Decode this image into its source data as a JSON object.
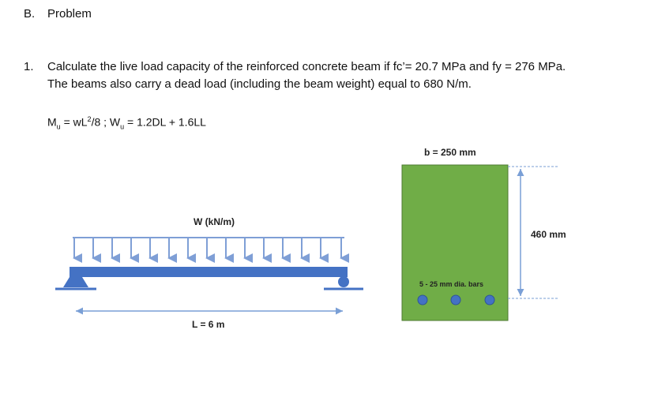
{
  "section": {
    "label": "B.",
    "title": "Problem"
  },
  "problem": {
    "number": "1.",
    "line1": "Calculate the live load capacity of the reinforced concrete beam if fc’= 20.7 MPa and fy = 276 MPa.",
    "line2": "The beams also carry a dead load (including the beam weight) equal to 680 N/m."
  },
  "formula": {
    "mu_lhs": "M",
    "mu_sub": "u",
    "mu_rhs_a": " = wL",
    "mu_sup": "2",
    "mu_rhs_b": "/8 ; W",
    "wu_sub": "u",
    "wu_rhs": " = 1.2DL + 1.6LL"
  },
  "beam_diagram": {
    "load_label": "W (kN/m)",
    "span_label": "L = 6 m",
    "colors": {
      "beam": "#4472c4",
      "load_arrows": "#7f9fd6"
    }
  },
  "section_diagram": {
    "width_label": "b = 250 mm",
    "depth_label": "460 mm",
    "bars_label": "5 - 25 mm dia. bars",
    "colors": {
      "concrete": "#70ad47",
      "bars": "#4472c4",
      "dimension": "#7a9fd6"
    }
  }
}
